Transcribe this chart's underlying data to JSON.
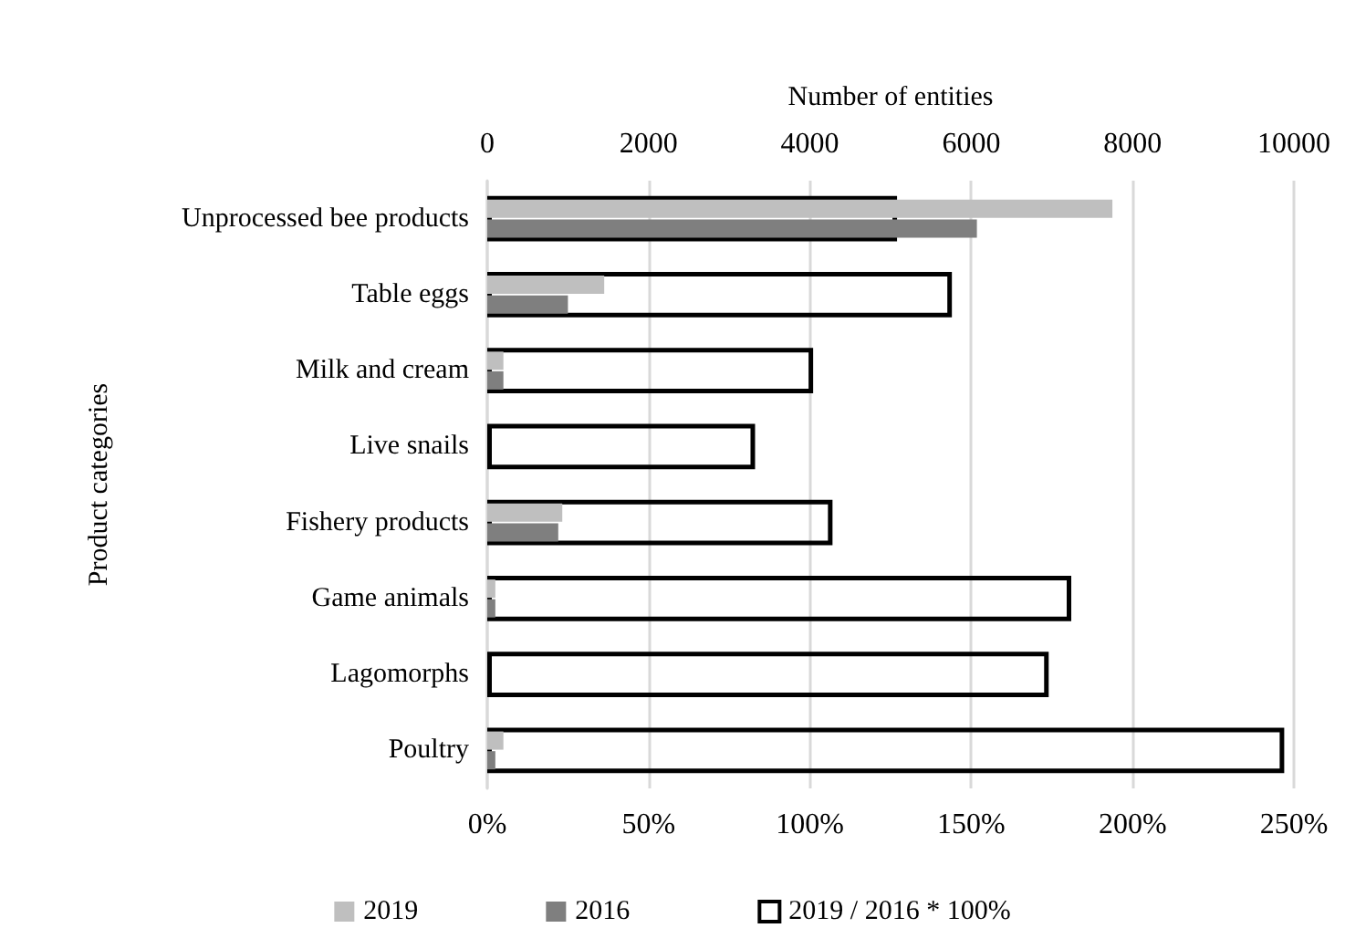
{
  "chart_data": {
    "type": "bar",
    "orientation": "horizontal",
    "categories": [
      "Unprocessed bee products",
      "Table eggs",
      "Milk and cream",
      "Live snails",
      "Fishery products",
      "Game animals",
      "Lagomorphs",
      "Poultry"
    ],
    "series": [
      {
        "name": "2019",
        "color": "#bfbfbf",
        "axis": "x2",
        "values": [
          7750,
          1450,
          200,
          null,
          930,
          100,
          null,
          200
        ]
      },
      {
        "name": "2016",
        "color": "#7f7f7f",
        "axis": "x2",
        "values": [
          6070,
          1000,
          200,
          null,
          880,
          100,
          null,
          100
        ]
      },
      {
        "name": "2019 / 2016 * 100%",
        "color": "#000000",
        "values": [
          127,
          144,
          101,
          83,
          107,
          181,
          174,
          247
        ]
      }
    ],
    "xlim": [
      0,
      250
    ],
    "xticks": [
      {
        "value": 0,
        "label": "0%"
      },
      {
        "value": 50,
        "label": "50%"
      },
      {
        "value": 100,
        "label": "100%"
      },
      {
        "value": 150,
        "label": "150%"
      },
      {
        "value": 200,
        "label": "200%"
      },
      {
        "value": 250,
        "label": "250%"
      }
    ],
    "x2lim": [
      0,
      10000
    ],
    "x2ticks": [
      0,
      2000,
      4000,
      6000,
      8000,
      10000
    ],
    "x2label": "Number of entities",
    "ylabel": "Product categories",
    "grid": "x",
    "legend": "bottom"
  }
}
